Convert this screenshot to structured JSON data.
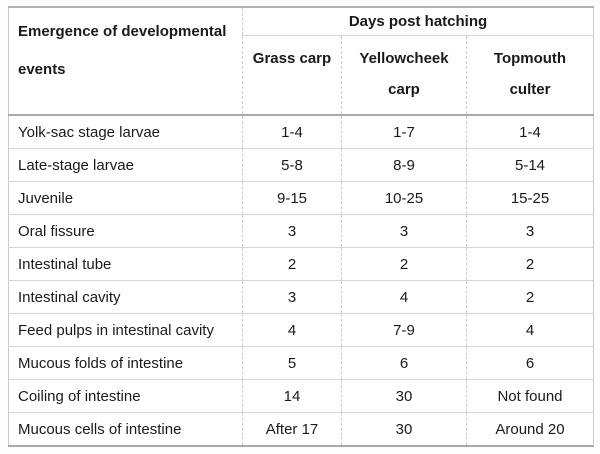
{
  "table": {
    "corner_header": {
      "line1": "Emergence of developmental",
      "line2": "events"
    },
    "group_header": "Days post hatching",
    "columns": [
      {
        "line1": "Grass carp",
        "line2": ""
      },
      {
        "line1": "Yellowcheek",
        "line2": "carp"
      },
      {
        "line1": "Topmouth",
        "line2": "culter"
      }
    ],
    "rows": [
      {
        "label": "Yolk-sac stage larvae",
        "values": [
          "1-4",
          "1-7",
          "1-4"
        ]
      },
      {
        "label": "Late-stage larvae",
        "values": [
          "5-8",
          "8-9",
          "5-14"
        ]
      },
      {
        "label": "Juvenile",
        "values": [
          "9-15",
          "10-25",
          "15-25"
        ]
      },
      {
        "label": "Oral fissure",
        "values": [
          "3",
          "3",
          "3"
        ]
      },
      {
        "label": "Intestinal tube",
        "values": [
          "2",
          "2",
          "2"
        ]
      },
      {
        "label": "Intestinal cavity",
        "values": [
          "3",
          "4",
          "2"
        ]
      },
      {
        "label": "Feed pulps in intestinal cavity",
        "values": [
          "4",
          "7-9",
          "4"
        ]
      },
      {
        "label": "Mucous folds of intestine",
        "values": [
          "5",
          "6",
          "6"
        ]
      },
      {
        "label": "Coiling of intestine",
        "values": [
          "14",
          "30",
          "Not found"
        ]
      },
      {
        "label": "Mucous cells of intestine",
        "values": [
          "After 17",
          "30",
          "Around 20"
        ]
      }
    ]
  },
  "colors": {
    "text": "#1a1a1a",
    "background": "#ffffff",
    "border_inner_horizontal": "#d4d4d4",
    "border_inner_vertical_dashed": "#cccccc",
    "border_outer_sides": "#c9c9c9",
    "border_strong": "#a9a9a9"
  }
}
